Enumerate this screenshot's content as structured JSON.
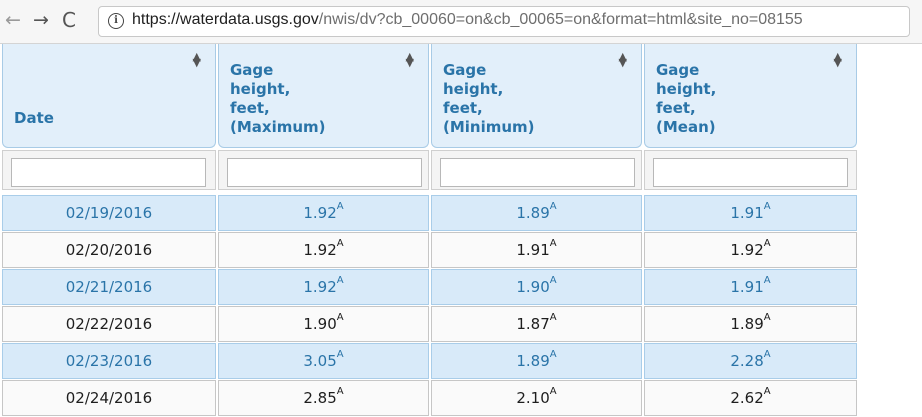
{
  "browser": {
    "back_icon": "←",
    "forward_icon": "→",
    "reload_icon": "C",
    "info_icon": "i",
    "url_scheme": "https://",
    "url_host": "waterdata.usgs.gov",
    "url_rest": "/nwis/dv?cb_00060=on&cb_00065=on&format=html&site_no=08155"
  },
  "table": {
    "sort_up": "▲",
    "sort_down": "▼",
    "headers": [
      {
        "label": "Date"
      },
      {
        "label": "Gage\nheight,\nfeet,\n(Maximum)"
      },
      {
        "label": "Gage\nheight,\nfeet,\n(Minimum)"
      },
      {
        "label": "Gage\nheight,\nfeet,\n(Mean)"
      }
    ],
    "filters": [
      "",
      "",
      "",
      ""
    ],
    "qualifier": "A",
    "rows": [
      {
        "date": "02/19/2016",
        "max": "1.92",
        "min": "1.89",
        "mean": "1.91"
      },
      {
        "date": "02/20/2016",
        "max": "1.92",
        "min": "1.91",
        "mean": "1.92"
      },
      {
        "date": "02/21/2016",
        "max": "1.92",
        "min": "1.90",
        "mean": "1.91"
      },
      {
        "date": "02/22/2016",
        "max": "1.90",
        "min": "1.87",
        "mean": "1.89"
      },
      {
        "date": "02/23/2016",
        "max": "3.05",
        "min": "1.89",
        "mean": "2.28"
      },
      {
        "date": "02/24/2016",
        "max": "2.85",
        "min": "2.10",
        "mean": "2.62"
      }
    ]
  },
  "colors": {
    "header_bg": "#e2effa",
    "link_blue": "#2a74a8",
    "alt_row_bg": "#d8eaf9"
  }
}
